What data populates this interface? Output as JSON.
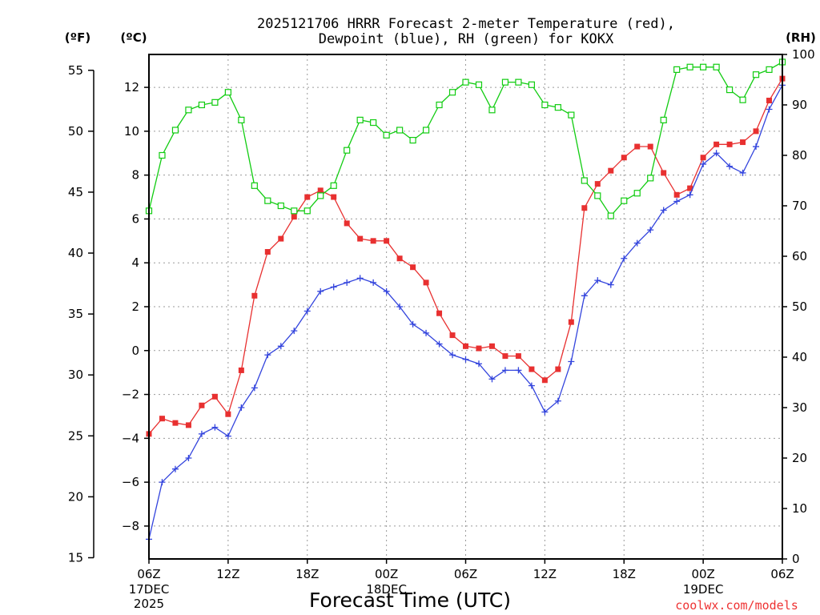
{
  "chart_data": {
    "type": "line",
    "title_line1": "2025121706 HRRR Forecast 2-meter Temperature (red),",
    "title_line2": "Dewpoint (blue), RH (green) for KOKX",
    "xlabel": "Forecast Time (UTC)",
    "credit": "coolwx.com/models",
    "unit_left_f": "(ºF)",
    "unit_left_c": "(ºC)",
    "unit_right": "(RH)",
    "x_ticks": [
      {
        "hour": 0,
        "label": "06Z"
      },
      {
        "hour": 6,
        "label": "12Z"
      },
      {
        "hour": 12,
        "label": "18Z"
      },
      {
        "hour": 18,
        "label": "00Z"
      },
      {
        "hour": 24,
        "label": "06Z"
      },
      {
        "hour": 30,
        "label": "12Z"
      },
      {
        "hour": 36,
        "label": "18Z"
      },
      {
        "hour": 42,
        "label": "00Z"
      },
      {
        "hour": 48,
        "label": "06Z"
      }
    ],
    "date_labels": [
      {
        "hour": 0,
        "lines": [
          "17DEC",
          "2025"
        ]
      },
      {
        "hour": 18,
        "lines": [
          "18DEC"
        ]
      },
      {
        "hour": 42,
        "lines": [
          "19DEC"
        ]
      }
    ],
    "xlim": [
      0,
      48
    ],
    "ylim_c": [
      -9.5,
      13.5
    ],
    "yticks_c": [
      -8,
      -6,
      -4,
      -2,
      0,
      2,
      4,
      6,
      8,
      10,
      12
    ],
    "yticks_f": [
      15,
      20,
      25,
      30,
      35,
      40,
      45,
      50,
      55
    ],
    "ylim_rh": [
      0,
      100
    ],
    "yticks_rh": [
      0,
      10,
      20,
      30,
      40,
      50,
      60,
      70,
      80,
      90,
      100
    ],
    "series": [
      {
        "name": "Temperature (°C)",
        "color": "#e83030",
        "marker": "filled-square",
        "values": [
          -3.8,
          -3.1,
          -3.3,
          -3.4,
          -2.5,
          -2.1,
          -2.9,
          -0.9,
          2.5,
          4.5,
          5.1,
          6.1,
          7.0,
          7.3,
          7.0,
          5.8,
          5.1,
          5.0,
          5.0,
          4.2,
          3.8,
          3.1,
          1.7,
          0.7,
          0.2,
          0.1,
          0.2,
          -0.25,
          -0.25,
          -0.85,
          -1.35,
          -0.85,
          1.3,
          6.5,
          7.6,
          8.2,
          8.8,
          9.3,
          9.3,
          8.1,
          7.1,
          7.4,
          8.8,
          9.4,
          9.4,
          9.5,
          10.0,
          11.4,
          12.4
        ]
      },
      {
        "name": "Dewpoint (°C)",
        "color": "#3344dd",
        "marker": "plus",
        "values": [
          -8.6,
          -6.0,
          -5.4,
          -4.9,
          -3.8,
          -3.5,
          -3.9,
          -2.6,
          -1.7,
          -0.2,
          0.2,
          0.9,
          1.8,
          2.7,
          2.9,
          3.1,
          3.3,
          3.1,
          2.7,
          2.0,
          1.2,
          0.8,
          0.3,
          -0.2,
          -0.4,
          -0.6,
          -1.3,
          -0.9,
          -0.9,
          -1.6,
          -2.8,
          -2.3,
          -0.5,
          2.5,
          3.2,
          3.0,
          4.2,
          4.9,
          5.5,
          6.4,
          6.8,
          7.1,
          8.5,
          9.0,
          8.4,
          8.1,
          9.3,
          11.0,
          12.1
        ]
      },
      {
        "name": "RH (%)",
        "color": "#11cc11",
        "marker": "open-square",
        "values": [
          69,
          80,
          85,
          89,
          90,
          90.5,
          92.5,
          87,
          74,
          71,
          70,
          69,
          69,
          72,
          74,
          81,
          87,
          86.5,
          84,
          85,
          83,
          85,
          90,
          92.5,
          94.5,
          94,
          89,
          94.5,
          94.5,
          94,
          90,
          89.5,
          88,
          75,
          72,
          68,
          71,
          72.5,
          75.5,
          87,
          97,
          97.5,
          97.5,
          97.5,
          93,
          91,
          96,
          97,
          98.5
        ]
      }
    ]
  }
}
